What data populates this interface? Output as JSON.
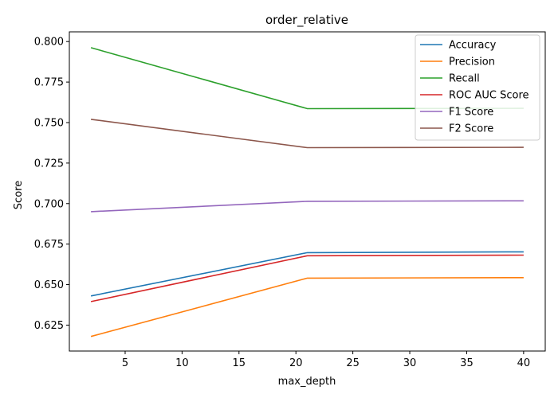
{
  "chart_data": {
    "type": "line",
    "title": "order_relative",
    "xlabel": "max_depth",
    "ylabel": "Score",
    "x": [
      2,
      21,
      40
    ],
    "xlim": [
      0.1,
      41.9
    ],
    "ylim": [
      0.609,
      0.806
    ],
    "xticks": [
      5,
      10,
      15,
      20,
      25,
      30,
      35,
      40
    ],
    "yticks": [
      0.625,
      0.65,
      0.675,
      0.7,
      0.725,
      0.75,
      0.775,
      0.8
    ],
    "grid": false,
    "legend_position": "top-right",
    "series": [
      {
        "name": "Accuracy",
        "color": "#1f77b4",
        "values": [
          0.643,
          0.6697,
          0.6702
        ]
      },
      {
        "name": "Precision",
        "color": "#ff7f0e",
        "values": [
          0.618,
          0.654,
          0.6543
        ]
      },
      {
        "name": "Recall",
        "color": "#2ca02c",
        "values": [
          0.7962,
          0.7586,
          0.7588
        ]
      },
      {
        "name": "ROC AUC Score",
        "color": "#d62728",
        "values": [
          0.6395,
          0.6678,
          0.6682
        ]
      },
      {
        "name": "F1 Score",
        "color": "#9467bd",
        "values": [
          0.695,
          0.7014,
          0.7017
        ]
      },
      {
        "name": "F2 Score",
        "color": "#8c564b",
        "values": [
          0.752,
          0.7345,
          0.7347
        ]
      }
    ]
  }
}
